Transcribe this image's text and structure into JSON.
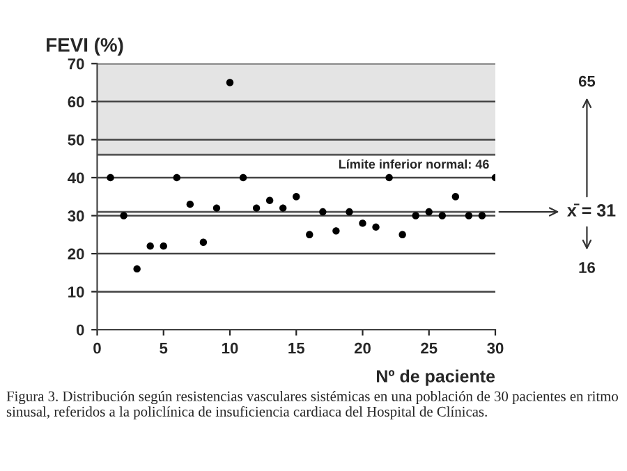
{
  "chart_data": {
    "type": "scatter",
    "ylabel": "FEVI (%)",
    "xlabel": "Nº de paciente",
    "x": [
      1,
      2,
      3,
      4,
      5,
      6,
      7,
      8,
      9,
      10,
      11,
      12,
      13,
      14,
      15,
      16,
      17,
      18,
      19,
      20,
      21,
      22,
      23,
      24,
      25,
      26,
      27,
      28,
      29,
      30
    ],
    "values": [
      40,
      30,
      16,
      22,
      22,
      40,
      33,
      23,
      32,
      65,
      40,
      32,
      34,
      32,
      35,
      25,
      31,
      26,
      31,
      28,
      27,
      40,
      25,
      30,
      31,
      30,
      35,
      30,
      30,
      40
    ],
    "color": "#000000",
    "marker": "circle",
    "xlim": [
      0,
      30
    ],
    "xticks": [
      0,
      5,
      10,
      15,
      20,
      25,
      30
    ],
    "ylim": [
      0,
      70
    ],
    "yticks": [
      0,
      10,
      20,
      30,
      40,
      50,
      60,
      70
    ],
    "grid": "y",
    "bands": [
      {
        "axis": "y",
        "from": 46,
        "to": 70,
        "color": "#e4e4e4"
      }
    ],
    "ref_lines": [
      {
        "axis": "y",
        "value": 46,
        "label": "Límite inferior normal: 46",
        "color": "#555555"
      },
      {
        "axis": "y",
        "value": 31,
        "label": "x̄ = 31",
        "color": "#555555"
      }
    ],
    "annotations": [
      "65",
      "16",
      "Figura 3. Distribución según resistencias vasculares sistémicas en una población de 30 pacientes en ritmo sinusal, referidos a la policlínica de insuficiencia cardiaca del Hospital de Clínicas."
    ]
  }
}
